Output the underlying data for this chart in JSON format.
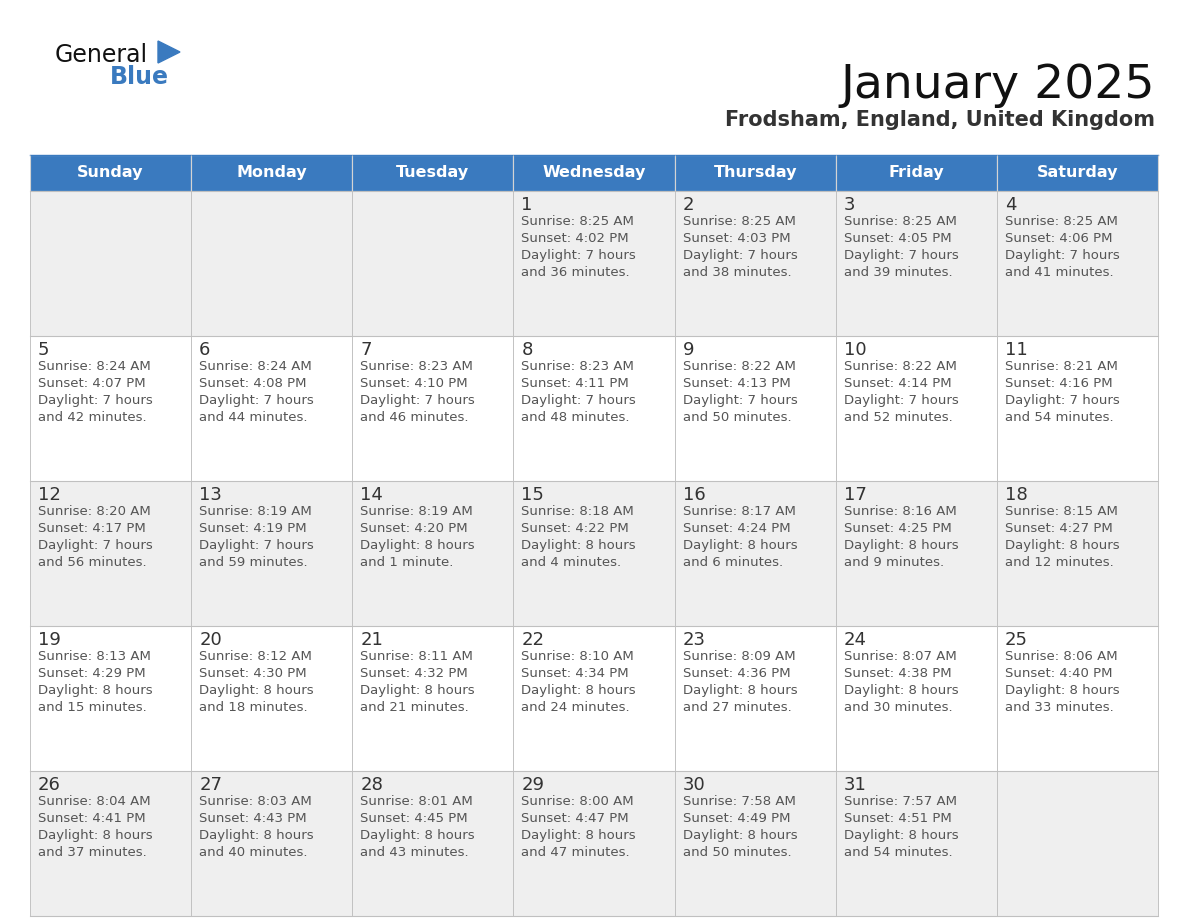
{
  "title": "January 2025",
  "subtitle": "Frodsham, England, United Kingdom",
  "header_bg": "#3a7abf",
  "header_text": "#ffffff",
  "row_bg_odd": "#efefef",
  "row_bg_even": "#ffffff",
  "cell_border": "#c0c0c0",
  "title_color": "#111111",
  "subtitle_color": "#333333",
  "day_number_color": "#333333",
  "cell_text_color": "#555555",
  "days_of_week": [
    "Sunday",
    "Monday",
    "Tuesday",
    "Wednesday",
    "Thursday",
    "Friday",
    "Saturday"
  ],
  "calendar": [
    [
      {
        "day": "",
        "sunrise": "",
        "sunset": "",
        "daylight_line1": "",
        "daylight_line2": ""
      },
      {
        "day": "",
        "sunrise": "",
        "sunset": "",
        "daylight_line1": "",
        "daylight_line2": ""
      },
      {
        "day": "",
        "sunrise": "",
        "sunset": "",
        "daylight_line1": "",
        "daylight_line2": ""
      },
      {
        "day": "1",
        "sunrise": "8:25 AM",
        "sunset": "4:02 PM",
        "daylight_line1": "Daylight: 7 hours",
        "daylight_line2": "and 36 minutes."
      },
      {
        "day": "2",
        "sunrise": "8:25 AM",
        "sunset": "4:03 PM",
        "daylight_line1": "Daylight: 7 hours",
        "daylight_line2": "and 38 minutes."
      },
      {
        "day": "3",
        "sunrise": "8:25 AM",
        "sunset": "4:05 PM",
        "daylight_line1": "Daylight: 7 hours",
        "daylight_line2": "and 39 minutes."
      },
      {
        "day": "4",
        "sunrise": "8:25 AM",
        "sunset": "4:06 PM",
        "daylight_line1": "Daylight: 7 hours",
        "daylight_line2": "and 41 minutes."
      }
    ],
    [
      {
        "day": "5",
        "sunrise": "8:24 AM",
        "sunset": "4:07 PM",
        "daylight_line1": "Daylight: 7 hours",
        "daylight_line2": "and 42 minutes."
      },
      {
        "day": "6",
        "sunrise": "8:24 AM",
        "sunset": "4:08 PM",
        "daylight_line1": "Daylight: 7 hours",
        "daylight_line2": "and 44 minutes."
      },
      {
        "day": "7",
        "sunrise": "8:23 AM",
        "sunset": "4:10 PM",
        "daylight_line1": "Daylight: 7 hours",
        "daylight_line2": "and 46 minutes."
      },
      {
        "day": "8",
        "sunrise": "8:23 AM",
        "sunset": "4:11 PM",
        "daylight_line1": "Daylight: 7 hours",
        "daylight_line2": "and 48 minutes."
      },
      {
        "day": "9",
        "sunrise": "8:22 AM",
        "sunset": "4:13 PM",
        "daylight_line1": "Daylight: 7 hours",
        "daylight_line2": "and 50 minutes."
      },
      {
        "day": "10",
        "sunrise": "8:22 AM",
        "sunset": "4:14 PM",
        "daylight_line1": "Daylight: 7 hours",
        "daylight_line2": "and 52 minutes."
      },
      {
        "day": "11",
        "sunrise": "8:21 AM",
        "sunset": "4:16 PM",
        "daylight_line1": "Daylight: 7 hours",
        "daylight_line2": "and 54 minutes."
      }
    ],
    [
      {
        "day": "12",
        "sunrise": "8:20 AM",
        "sunset": "4:17 PM",
        "daylight_line1": "Daylight: 7 hours",
        "daylight_line2": "and 56 minutes."
      },
      {
        "day": "13",
        "sunrise": "8:19 AM",
        "sunset": "4:19 PM",
        "daylight_line1": "Daylight: 7 hours",
        "daylight_line2": "and 59 minutes."
      },
      {
        "day": "14",
        "sunrise": "8:19 AM",
        "sunset": "4:20 PM",
        "daylight_line1": "Daylight: 8 hours",
        "daylight_line2": "and 1 minute."
      },
      {
        "day": "15",
        "sunrise": "8:18 AM",
        "sunset": "4:22 PM",
        "daylight_line1": "Daylight: 8 hours",
        "daylight_line2": "and 4 minutes."
      },
      {
        "day": "16",
        "sunrise": "8:17 AM",
        "sunset": "4:24 PM",
        "daylight_line1": "Daylight: 8 hours",
        "daylight_line2": "and 6 minutes."
      },
      {
        "day": "17",
        "sunrise": "8:16 AM",
        "sunset": "4:25 PM",
        "daylight_line1": "Daylight: 8 hours",
        "daylight_line2": "and 9 minutes."
      },
      {
        "day": "18",
        "sunrise": "8:15 AM",
        "sunset": "4:27 PM",
        "daylight_line1": "Daylight: 8 hours",
        "daylight_line2": "and 12 minutes."
      }
    ],
    [
      {
        "day": "19",
        "sunrise": "8:13 AM",
        "sunset": "4:29 PM",
        "daylight_line1": "Daylight: 8 hours",
        "daylight_line2": "and 15 minutes."
      },
      {
        "day": "20",
        "sunrise": "8:12 AM",
        "sunset": "4:30 PM",
        "daylight_line1": "Daylight: 8 hours",
        "daylight_line2": "and 18 minutes."
      },
      {
        "day": "21",
        "sunrise": "8:11 AM",
        "sunset": "4:32 PM",
        "daylight_line1": "Daylight: 8 hours",
        "daylight_line2": "and 21 minutes."
      },
      {
        "day": "22",
        "sunrise": "8:10 AM",
        "sunset": "4:34 PM",
        "daylight_line1": "Daylight: 8 hours",
        "daylight_line2": "and 24 minutes."
      },
      {
        "day": "23",
        "sunrise": "8:09 AM",
        "sunset": "4:36 PM",
        "daylight_line1": "Daylight: 8 hours",
        "daylight_line2": "and 27 minutes."
      },
      {
        "day": "24",
        "sunrise": "8:07 AM",
        "sunset": "4:38 PM",
        "daylight_line1": "Daylight: 8 hours",
        "daylight_line2": "and 30 minutes."
      },
      {
        "day": "25",
        "sunrise": "8:06 AM",
        "sunset": "4:40 PM",
        "daylight_line1": "Daylight: 8 hours",
        "daylight_line2": "and 33 minutes."
      }
    ],
    [
      {
        "day": "26",
        "sunrise": "8:04 AM",
        "sunset": "4:41 PM",
        "daylight_line1": "Daylight: 8 hours",
        "daylight_line2": "and 37 minutes."
      },
      {
        "day": "27",
        "sunrise": "8:03 AM",
        "sunset": "4:43 PM",
        "daylight_line1": "Daylight: 8 hours",
        "daylight_line2": "and 40 minutes."
      },
      {
        "day": "28",
        "sunrise": "8:01 AM",
        "sunset": "4:45 PM",
        "daylight_line1": "Daylight: 8 hours",
        "daylight_line2": "and 43 minutes."
      },
      {
        "day": "29",
        "sunrise": "8:00 AM",
        "sunset": "4:47 PM",
        "daylight_line1": "Daylight: 8 hours",
        "daylight_line2": "and 47 minutes."
      },
      {
        "day": "30",
        "sunrise": "7:58 AM",
        "sunset": "4:49 PM",
        "daylight_line1": "Daylight: 8 hours",
        "daylight_line2": "and 50 minutes."
      },
      {
        "day": "31",
        "sunrise": "7:57 AM",
        "sunset": "4:51 PM",
        "daylight_line1": "Daylight: 8 hours",
        "daylight_line2": "and 54 minutes."
      },
      {
        "day": "",
        "sunrise": "",
        "sunset": "",
        "daylight_line1": "",
        "daylight_line2": ""
      }
    ]
  ]
}
